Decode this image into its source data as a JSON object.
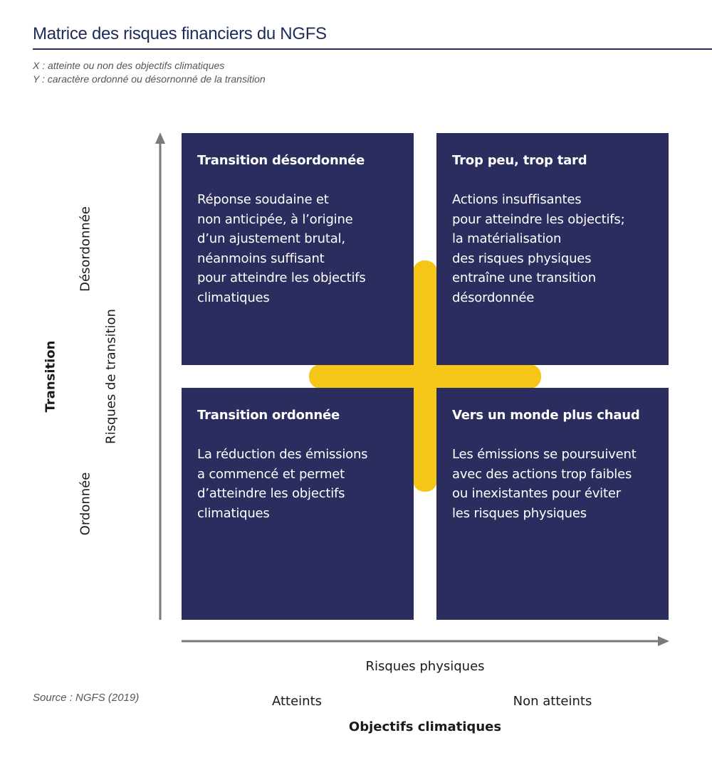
{
  "header": {
    "title": "Matrice des risques financiers du NGFS",
    "note_x": "X : atteinte ou non des objectifs climatiques",
    "note_y": "Y : caractère ordonné ou désornonné de la transition"
  },
  "quadrants": {
    "top_left": {
      "title": "Transition désordonnée",
      "body": "Réponse soudaine et\nnon anticipée, à l’origine\nd’un ajustement brutal,\nnéanmoins suffisant\npour atteindre les objectifs\nclimatiques"
    },
    "top_right": {
      "title": "Trop peu, trop tard",
      "body": "Actions insuffisantes\npour atteindre les objectifs;\nla matérialisation\ndes risques physiques\nentraîne une transition\ndésordonnée"
    },
    "bottom_left": {
      "title": "Transition ordonnée",
      "body": "La réduction des émissions\na commencé et permet\nd’atteindre les objectifs\nclimatiques"
    },
    "bottom_right": {
      "title": "Vers un monde plus chaud",
      "body": "Les émissions se poursuivent\navec des actions trop faibles\nou inexistantes pour éviter\nles risques physiques"
    }
  },
  "y_axis": {
    "title": "Transition",
    "subtitle": "Risques de transition",
    "top_label": "Désordonnée",
    "bottom_label": "Ordonnée"
  },
  "x_axis": {
    "subtitle": "Risques physiques",
    "left_label": "Atteints",
    "right_label": "Non atteints",
    "title": "Objectifs climatiques"
  },
  "source": "Source : NGFS (2019)",
  "colors": {
    "quadrant": "#2b2d5e",
    "cross": "#f5c518",
    "axis": "#7a7a7a",
    "title": "#1f2a5a"
  }
}
